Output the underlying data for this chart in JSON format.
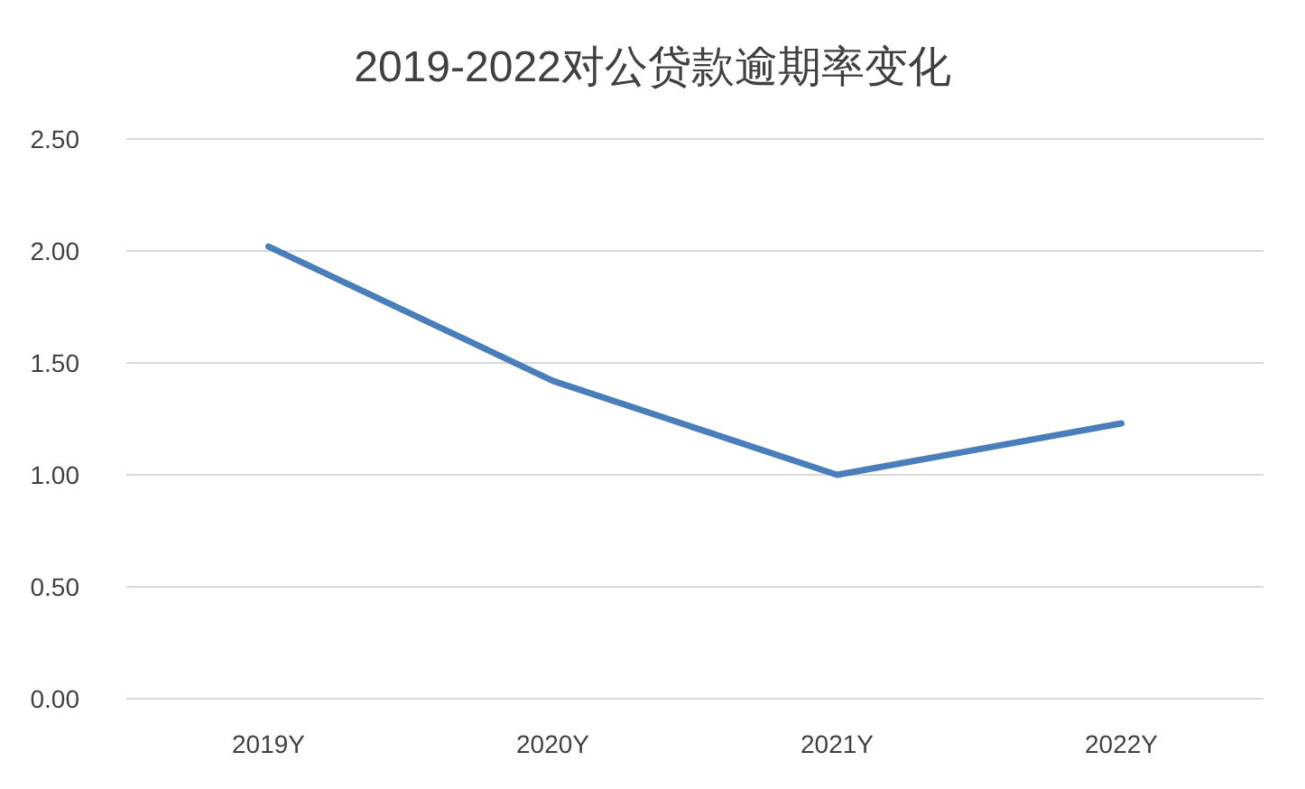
{
  "chart_data": {
    "type": "line",
    "title": "2019-2022对公贷款逾期率变化",
    "categories": [
      "2019Y",
      "2020Y",
      "2021Y",
      "2022Y"
    ],
    "series": [
      {
        "color": "#4a7ebb",
        "values": [
          2.02,
          1.42,
          1.0,
          1.23
        ]
      }
    ],
    "ylim": [
      0,
      2.5
    ],
    "yticks": [
      {
        "value": 0,
        "label": "0.00"
      },
      {
        "value": 0.5,
        "label": "0.50"
      },
      {
        "value": 1,
        "label": "1.00"
      },
      {
        "value": 1.5,
        "label": "1.50"
      },
      {
        "value": 2,
        "label": "2.00"
      },
      {
        "value": 2.5,
        "label": "2.50"
      }
    ],
    "grid": "y",
    "marker": "none",
    "line_style": "solid"
  }
}
